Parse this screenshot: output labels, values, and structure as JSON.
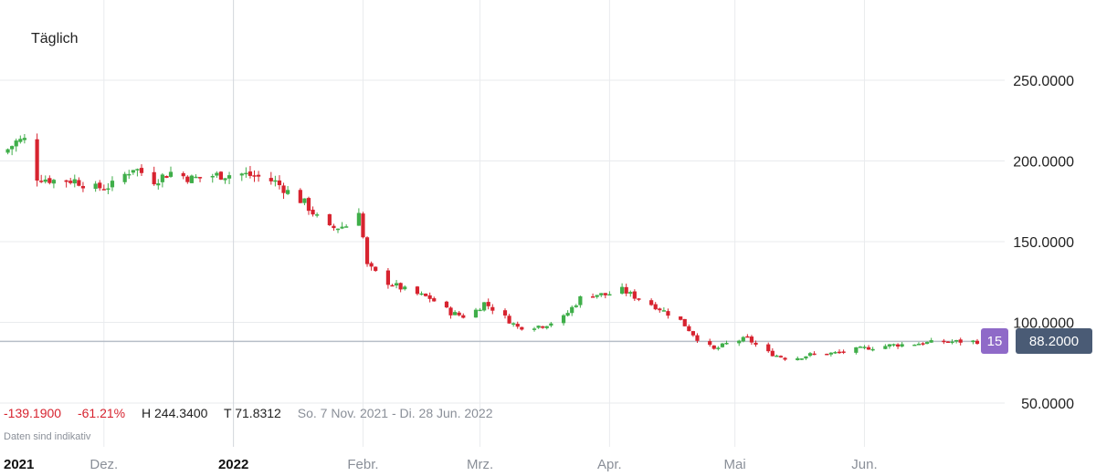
{
  "period_label": "Täglich",
  "stats": {
    "change_abs": "-139.1900",
    "change_pct": "-61.21%",
    "high": "H 244.3400",
    "low": "T 71.8312",
    "range": "So. 7 Nov. 2021 - Di. 28 Jun. 2022"
  },
  "note": "Daten sind indikativ",
  "badges": {
    "percent": "15",
    "price": "88.2000"
  },
  "colors": {
    "up": "#3fae49",
    "down": "#d7232f",
    "grid": "#e9ebee",
    "current_line": "#b7bec8"
  },
  "chart_data": {
    "type": "candlestick",
    "ylim": [
      40,
      270
    ],
    "y_ticks": [
      50,
      100,
      150,
      200,
      250
    ],
    "y_tick_labels": [
      "50.0000",
      "100.0000",
      "150.0000",
      "200.0000",
      "250.0000"
    ],
    "x_range": [
      "2021-11-07",
      "2022-06-28"
    ],
    "x_ticks": [
      {
        "date": "2021-11-07",
        "label": "2021",
        "bold": true
      },
      {
        "date": "2021-12-01",
        "label": "Dez.",
        "bold": false
      },
      {
        "date": "2022-01-01",
        "label": "2022",
        "bold": true
      },
      {
        "date": "2022-02-01",
        "label": "Febr.",
        "bold": false
      },
      {
        "date": "2022-03-01",
        "label": "Mrz.",
        "bold": false
      },
      {
        "date": "2022-04-01",
        "label": "Apr.",
        "bold": false
      },
      {
        "date": "2022-05-01",
        "label": "Mai",
        "bold": false
      },
      {
        "date": "2022-06-01",
        "label": "Jun.",
        "bold": false
      }
    ],
    "current_price": 88.2,
    "close_path": [
      [
        "2021-11-07",
        205
      ],
      [
        "2021-11-10",
        212
      ],
      [
        "2021-11-12",
        213
      ],
      [
        "2021-11-15",
        190
      ],
      [
        "2021-11-19",
        188
      ],
      [
        "2021-11-24",
        188
      ],
      [
        "2021-11-29",
        183
      ],
      [
        "2021-12-03",
        185
      ],
      [
        "2021-12-08",
        196
      ],
      [
        "2021-12-13",
        188
      ],
      [
        "2021-12-17",
        193
      ],
      [
        "2021-12-22",
        189
      ],
      [
        "2021-12-27",
        191
      ],
      [
        "2022-01-03",
        192
      ],
      [
        "2022-01-07",
        190
      ],
      [
        "2022-01-11",
        187
      ],
      [
        "2022-01-14",
        181
      ],
      [
        "2022-01-18",
        174
      ],
      [
        "2022-01-21",
        165
      ],
      [
        "2022-01-24",
        158
      ],
      [
        "2022-01-28",
        160
      ],
      [
        "2022-01-31",
        170
      ],
      [
        "2022-02-02",
        135
      ],
      [
        "2022-02-06",
        126
      ],
      [
        "2022-02-12",
        119
      ],
      [
        "2022-02-17",
        115
      ],
      [
        "2022-02-22",
        106
      ],
      [
        "2022-02-26",
        103
      ],
      [
        "2022-03-02",
        112
      ],
      [
        "2022-03-06",
        105
      ],
      [
        "2022-03-10",
        97
      ],
      [
        "2022-03-16",
        98
      ],
      [
        "2022-03-21",
        103
      ],
      [
        "2022-03-26",
        118
      ],
      [
        "2022-03-31",
        117
      ],
      [
        "2022-04-04",
        120
      ],
      [
        "2022-04-07",
        116
      ],
      [
        "2022-04-12",
        110
      ],
      [
        "2022-04-18",
        101
      ],
      [
        "2022-04-22",
        90
      ],
      [
        "2022-04-26",
        83
      ],
      [
        "2022-04-30",
        88
      ],
      [
        "2022-05-04",
        90
      ],
      [
        "2022-05-08",
        82
      ],
      [
        "2022-05-14",
        77
      ],
      [
        "2022-05-19",
        80
      ],
      [
        "2022-05-25",
        81
      ],
      [
        "2022-06-01",
        84
      ],
      [
        "2022-06-08",
        86
      ],
      [
        "2022-06-14",
        87
      ],
      [
        "2022-06-20",
        88
      ],
      [
        "2022-06-28",
        88.2
      ]
    ]
  }
}
